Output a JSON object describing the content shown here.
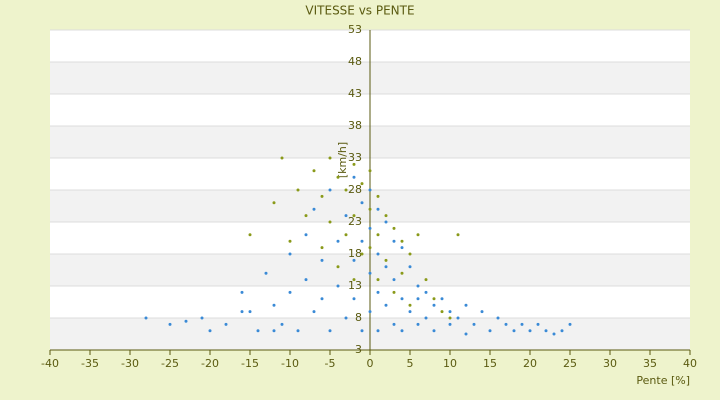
{
  "chart_data": {
    "type": "scatter",
    "title": "VITESSE vs PENTE",
    "x_label": "Pente [%]",
    "y_label": "[km/h]",
    "xlim": [
      -40,
      40
    ],
    "xticks": [
      -40,
      -35,
      -30,
      -25,
      -20,
      -15,
      -10,
      -5,
      0,
      5,
      10,
      15,
      20,
      25,
      30,
      35,
      40
    ],
    "ylim": [
      3,
      53
    ],
    "yticks": [
      3,
      8,
      13,
      18,
      23,
      28,
      33,
      38,
      43,
      48,
      53
    ],
    "grid": true,
    "series": [
      {
        "color": "#8a9a1a",
        "x": [
          -11,
          -12,
          -10,
          -9,
          -8,
          -7,
          -6,
          -6,
          -5,
          -5,
          -4,
          -4,
          -3,
          -3,
          -2,
          -2,
          -2,
          -1,
          -1,
          0,
          0,
          0,
          1,
          1,
          1,
          2,
          2,
          3,
          3,
          4,
          4,
          5,
          5,
          6,
          7,
          8,
          9,
          10,
          -15,
          11
        ],
        "values": [
          33,
          26,
          20,
          28,
          24,
          31,
          27,
          19,
          33,
          23,
          30,
          16,
          28,
          21,
          32,
          24,
          14,
          29,
          18,
          31,
          25,
          19,
          27,
          21,
          14,
          24,
          17,
          22,
          12,
          20,
          15,
          18,
          10,
          21,
          14,
          11,
          9,
          8,
          21,
          21
        ]
      },
      {
        "color": "#3a8ad6",
        "x": [
          -28,
          -25,
          -23,
          -21,
          -20,
          -18,
          -16,
          -15,
          -14,
          -13,
          -12,
          -11,
          -10,
          -10,
          -9,
          -8,
          -8,
          -7,
          -7,
          -6,
          -6,
          -5,
          -5,
          -4,
          -4,
          -3,
          -3,
          -2,
          -2,
          -2,
          -1,
          -1,
          -1,
          0,
          0,
          0,
          0,
          1,
          1,
          1,
          1,
          2,
          2,
          2,
          3,
          3,
          3,
          4,
          4,
          5,
          5,
          6,
          6,
          7,
          7,
          8,
          8,
          9,
          10,
          10,
          11,
          12,
          13,
          14,
          15,
          16,
          17,
          18,
          19,
          20,
          21,
          22,
          23,
          24,
          25,
          4,
          -12,
          12,
          -16,
          6
        ],
        "values": [
          8,
          7,
          7.5,
          8,
          6,
          7,
          12,
          9,
          6,
          15,
          10,
          7,
          18,
          12,
          6,
          21,
          14,
          9,
          25,
          17,
          11,
          6,
          28,
          20,
          13,
          24,
          8,
          30,
          17,
          11,
          26,
          20,
          6,
          28,
          22,
          15,
          9,
          25,
          18,
          12,
          6,
          23,
          16,
          10,
          20,
          14,
          7,
          19,
          11,
          16,
          9,
          13,
          7,
          12,
          8,
          10,
          6,
          11,
          9,
          7,
          8,
          10,
          7,
          9,
          6,
          8,
          7,
          6,
          7,
          6,
          7,
          6,
          5.5,
          6,
          7,
          6,
          6,
          5.5,
          9,
          11
        ]
      }
    ]
  }
}
